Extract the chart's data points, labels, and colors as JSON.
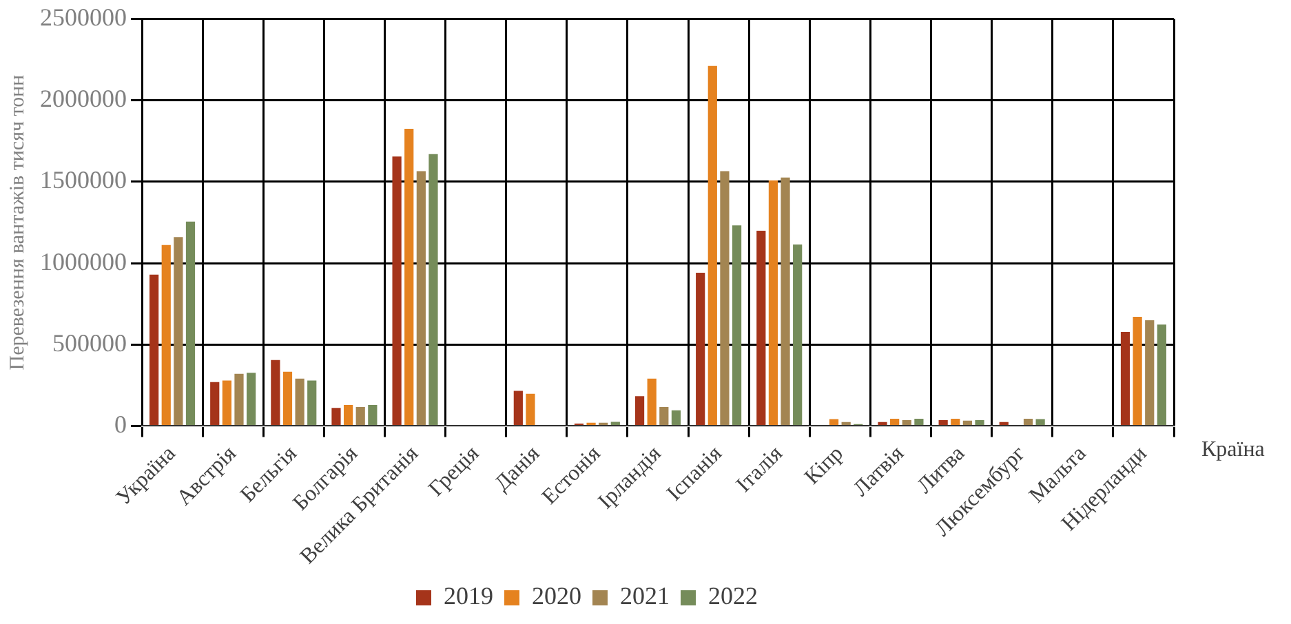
{
  "chart_data": {
    "type": "bar",
    "ylabel": "Перевезення вантажів тисяч тонн",
    "xlabel": "Країна",
    "categories": [
      "Україна",
      "Австрія",
      "Бельгія",
      "Болгарія",
      "Велика Британія",
      "Греція",
      "Данія",
      "Естонія",
      "Ірландія",
      "Іспанія",
      "Італія",
      "Кіпр",
      "Латвія",
      "Литва",
      "Люксембург",
      "Мальта",
      "Нідерланди"
    ],
    "series": [
      {
        "name": "2019",
        "color": "#a5341a",
        "values": [
          930000,
          270000,
          405000,
          111000,
          1655000,
          0,
          216000,
          15000,
          183000,
          941000,
          1199000,
          0,
          24000,
          36000,
          24000,
          0,
          578000
        ]
      },
      {
        "name": "2020",
        "color": "#e5821f",
        "values": [
          1112000,
          279000,
          333000,
          129000,
          1826000,
          0,
          198000,
          20000,
          291000,
          2212000,
          1508000,
          42000,
          45000,
          45000,
          0,
          0,
          671000
        ]
      },
      {
        "name": "2021",
        "color": "#a38552",
        "values": [
          1160000,
          321000,
          291000,
          117000,
          1565000,
          0,
          0,
          20000,
          117000,
          1565000,
          1526000,
          24000,
          36000,
          33000,
          45000,
          0,
          650000
        ]
      },
      {
        "name": "2022",
        "color": "#758c5a",
        "values": [
          1256000,
          327000,
          279000,
          129000,
          1670000,
          0,
          0,
          25000,
          96000,
          1232000,
          1115000,
          12000,
          45000,
          36000,
          42000,
          0,
          623000
        ]
      }
    ],
    "ylim": [
      0,
      2500000
    ],
    "yticks": [
      0,
      500000,
      1000000,
      1500000,
      2000000,
      2500000
    ],
    "grid": true,
    "legend": "bottom"
  }
}
